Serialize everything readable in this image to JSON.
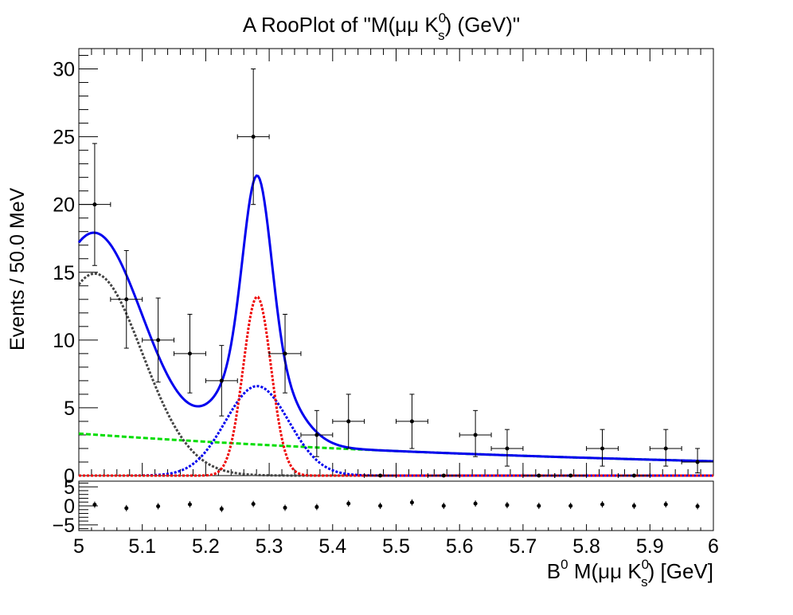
{
  "chart_data": {
    "type": "scatter",
    "title": "A RooPlot of \"M(μμ K",
    "title_sup": "0",
    "title_sub": "s",
    "title_end": ") (GeV)\"",
    "xlabel_prefix": "B",
    "xlabel_sup": "0",
    "xlabel_mid": " M(μμ K",
    "xlabel_sub": "s",
    "xlabel_sup2": "0",
    "xlabel_end": ") [GeV]",
    "ylabel": "Events / 50.0 MeV",
    "xlim": [
      5.0,
      6.0
    ],
    "ylim": [
      0,
      31.5
    ],
    "xticks": [
      "5",
      "5.1",
      "5.2",
      "5.3",
      "5.4",
      "5.5",
      "5.6",
      "5.7",
      "5.8",
      "5.9",
      "6"
    ],
    "yticks": [
      "0",
      "5",
      "10",
      "15",
      "20",
      "25",
      "30"
    ],
    "data_points": {
      "x": [
        5.025,
        5.075,
        5.125,
        5.175,
        5.225,
        5.275,
        5.325,
        5.375,
        5.425,
        5.475,
        5.525,
        5.575,
        5.625,
        5.675,
        5.725,
        5.775,
        5.825,
        5.875,
        5.925,
        5.975
      ],
      "y": [
        20,
        13,
        10,
        9,
        7,
        25,
        9,
        3,
        4,
        0,
        4,
        0,
        3,
        2,
        0,
        0,
        2,
        0,
        2,
        1
      ],
      "yerr_low": [
        4.5,
        3.6,
        3.1,
        2.9,
        2.6,
        5.0,
        2.9,
        1.6,
        2.0,
        0,
        2.0,
        0,
        1.6,
        1.3,
        0,
        0,
        1.3,
        0,
        1.3,
        0.8
      ],
      "yerr_high": [
        4.5,
        3.6,
        3.1,
        2.9,
        2.6,
        5.0,
        2.9,
        1.8,
        2.0,
        0,
        2.0,
        0,
        1.8,
        1.4,
        0,
        0,
        1.4,
        0,
        1.4,
        1.0
      ],
      "xerr": 0.025
    },
    "curves": [
      {
        "role": "total",
        "color": "#0000ee",
        "style": "solid"
      },
      {
        "role": "signal-narrow",
        "color": "#ee0000",
        "style": "dotted"
      },
      {
        "role": "signal-wide",
        "color": "#0000ee",
        "style": "dotted"
      },
      {
        "role": "partial-background",
        "color": "#444444",
        "style": "dotted"
      },
      {
        "role": "combinatorial",
        "color": "#00dd00",
        "style": "dashed"
      }
    ],
    "components": {
      "narrow": {
        "amp": 13.2,
        "mean": 5.281,
        "sigma": 0.022
      },
      "wide": {
        "amp": 6.6,
        "mean": 5.281,
        "sigma": 0.05
      },
      "partial": {
        "amp": 14.9,
        "mean": 5.025,
        "sigma": 0.075
      },
      "combinatorial": {
        "a": 3.1,
        "tau": 0.93
      }
    },
    "pull_panel": {
      "ylim": [
        -6.5,
        6.5
      ],
      "yticks": [
        "−5",
        "0",
        "5"
      ],
      "values": [
        0.3,
        -0.6,
        -0.1,
        0.4,
        -0.8,
        0.5,
        -0.5,
        -0.3,
        0.6,
        0.0,
        0.9,
        0.0,
        0.6,
        0.2,
        0.0,
        0.0,
        0.4,
        0.0,
        0.4,
        -0.1
      ]
    }
  }
}
